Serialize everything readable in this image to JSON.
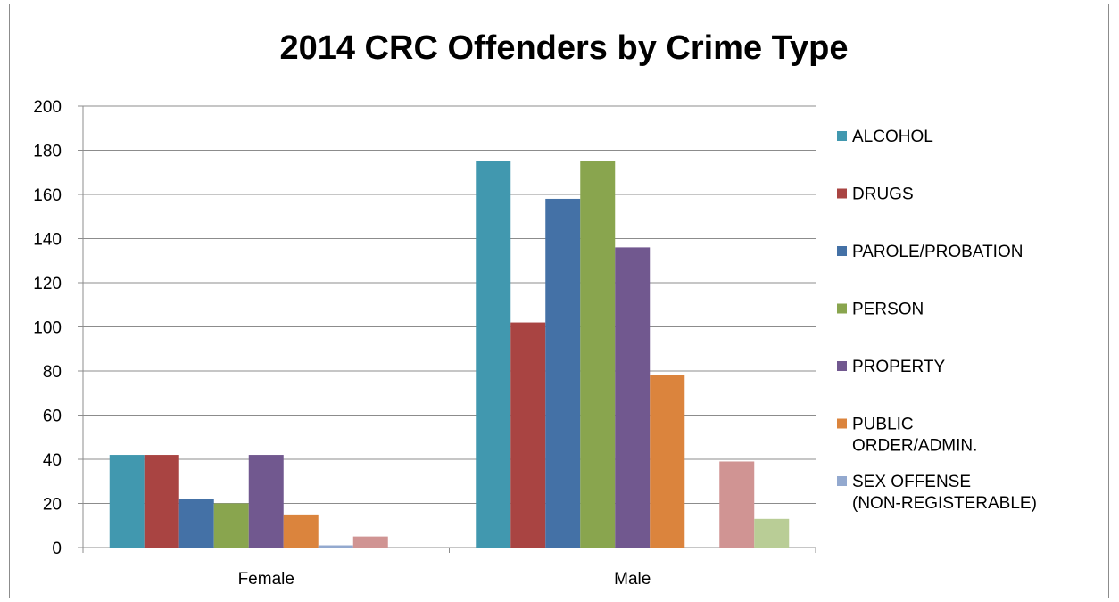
{
  "chart_data": {
    "type": "bar",
    "title": "2014 CRC Offenders by Crime Type",
    "xlabel": "",
    "ylabel": "",
    "categories": [
      "Female",
      "Male"
    ],
    "ylim": [
      0,
      200
    ],
    "yticks": [
      0,
      20,
      40,
      60,
      80,
      100,
      120,
      140,
      160,
      180,
      200
    ],
    "grid": true,
    "legend_position": "right",
    "series": [
      {
        "name": "ALCOHOL",
        "color": "#4198AF",
        "values": [
          42,
          175
        ]
      },
      {
        "name": "DRUGS",
        "color": "#A94442",
        "values": [
          42,
          102
        ]
      },
      {
        "name": "PAROLE/PROBATION",
        "color": "#4471A6",
        "values": [
          22,
          158
        ]
      },
      {
        "name": "PERSON",
        "color": "#89A54E",
        "values": [
          20,
          175
        ]
      },
      {
        "name": "PROPERTY",
        "color": "#71588F",
        "values": [
          42,
          136
        ]
      },
      {
        "name": "PUBLIC ORDER/ADMIN.",
        "color": "#DB843D",
        "values": [
          15,
          78
        ]
      },
      {
        "name": "SEX OFFENSE (NON-REGISTERABLE)",
        "color": "#93A9CF",
        "values": [
          1,
          0
        ]
      },
      {
        "name": "",
        "color": "#D09493",
        "values": [
          5,
          39
        ]
      },
      {
        "name": "",
        "color": "#B9CD96",
        "values": [
          0,
          13
        ]
      }
    ],
    "legend_lines": [
      [
        "ALCOHOL"
      ],
      [
        "DRUGS"
      ],
      [
        "PAROLE/PROBATION"
      ],
      [
        "PERSON"
      ],
      [
        "PROPERTY"
      ],
      [
        "PUBLIC",
        "ORDER/ADMIN."
      ],
      [
        "SEX OFFENSE",
        "(NON-REGISTERABLE)"
      ]
    ]
  }
}
